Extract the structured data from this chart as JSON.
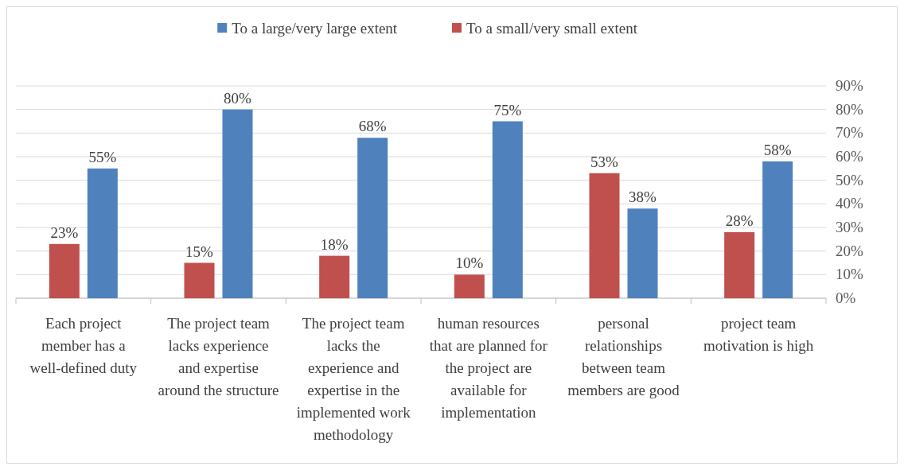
{
  "chart_data": {
    "type": "bar",
    "categories": [
      "Each project member has a well-defined duty",
      "The project team lacks experience and expertise around the structure",
      "The project team lacks the experience and expertise in the implemented work methodology",
      "human resources that are planned for the project are available for implementation",
      "personal relationships between team members are good",
      "project team motivation is high"
    ],
    "series": [
      {
        "name": "To a small/very small extent",
        "color": "#c0504d",
        "values": [
          23,
          15,
          18,
          10,
          53,
          28
        ],
        "value_labels": [
          "23%",
          "15%",
          "18%",
          "10%",
          "53%",
          "28%"
        ]
      },
      {
        "name": "To a large/very large extent",
        "color": "#4f81bd",
        "values": [
          55,
          80,
          68,
          75,
          38,
          58
        ],
        "value_labels": [
          "55%",
          "80%",
          "68%",
          "75%",
          "38%",
          "58%"
        ]
      }
    ],
    "ylim": [
      0,
      90
    ],
    "yticks": [
      {
        "value": 0,
        "label": "0%"
      },
      {
        "value": 10,
        "label": "10%"
      },
      {
        "value": 20,
        "label": "20%"
      },
      {
        "value": 30,
        "label": "30%"
      },
      {
        "value": 40,
        "label": "40%"
      },
      {
        "value": 50,
        "label": "50%"
      },
      {
        "value": 60,
        "label": "60%"
      },
      {
        "value": 70,
        "label": "70%"
      },
      {
        "value": 80,
        "label": "80%"
      },
      {
        "value": 90,
        "label": "90%"
      }
    ],
    "grid": "y",
    "legend": "top"
  }
}
